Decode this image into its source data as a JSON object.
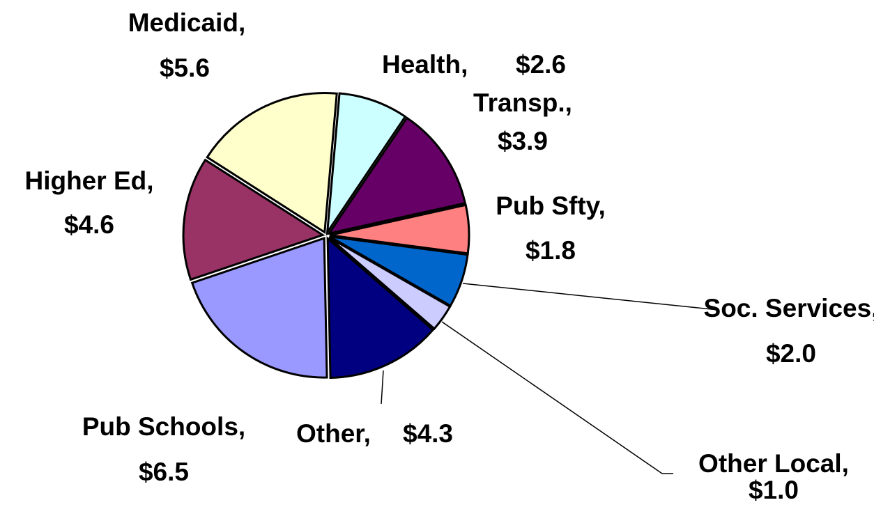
{
  "chart_data": {
    "type": "pie",
    "categories": [
      "Health,",
      "Transp.,",
      "Pub Sfty,",
      "Soc. Services,",
      "Other Local,",
      "Other,",
      "Pub Schools,",
      "Higher Ed,",
      "Medicaid,"
    ],
    "values": [
      2.6,
      3.9,
      1.8,
      2.0,
      1.0,
      4.3,
      6.5,
      4.6,
      5.6
    ],
    "value_labels": [
      "$2.6",
      "$3.9",
      "$1.8",
      "$2.0",
      "$1.0",
      "$4.3",
      "$6.5",
      "$4.6",
      "$5.6"
    ],
    "colors": [
      "#ccffff",
      "#660066",
      "#ff8080",
      "#0066cc",
      "#ccccff",
      "#000080",
      "#9999ff",
      "#993366",
      "#ffffcc"
    ]
  }
}
